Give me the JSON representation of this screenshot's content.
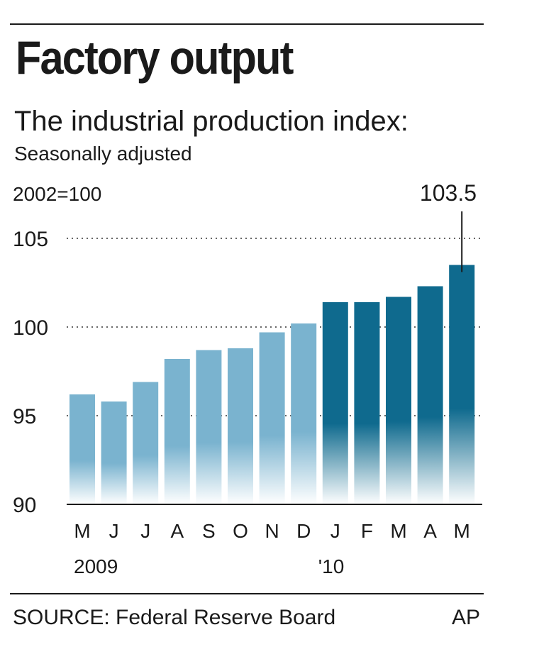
{
  "title": "Factory output",
  "subtitle": "The industrial production index:",
  "subnote": "Seasonally adjusted",
  "source": "SOURCE: Federal Reserve Board",
  "credit": "AP",
  "colors": {
    "bar_2009": "#7ab3cf",
    "bar_2010": "#0f6a8e",
    "text": "#1a1a1a",
    "grid": "#666666"
  },
  "chart_data": {
    "type": "bar",
    "units_label": "2002=100",
    "categories": [
      "M",
      "J",
      "J",
      "A",
      "S",
      "O",
      "N",
      "D",
      "J",
      "F",
      "M",
      "A",
      "M"
    ],
    "year_labels": [
      {
        "index": 0,
        "label": "2009"
      },
      {
        "index": 8,
        "label": "'10"
      }
    ],
    "values": [
      96.2,
      95.8,
      96.9,
      98.2,
      98.7,
      98.8,
      99.7,
      100.2,
      101.4,
      101.4,
      101.7,
      102.3,
      103.5
    ],
    "highlight_from_index": 8,
    "callout": {
      "index": 12,
      "label": "103.5"
    },
    "yticks": [
      90,
      95,
      100,
      105
    ],
    "ylim": [
      90,
      105
    ],
    "grid": "dotted at 95, 100, 105",
    "legend": "none"
  }
}
